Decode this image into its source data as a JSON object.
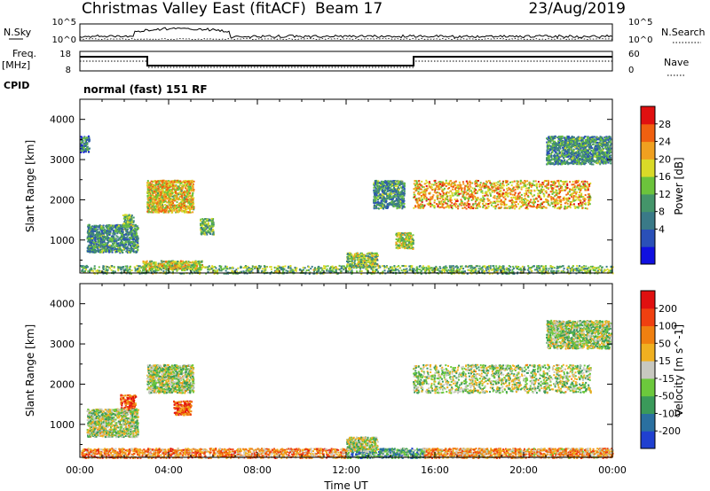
{
  "header": {
    "station": "Christmas Valley East (fitACF)",
    "beam": "Beam 17",
    "date": "23/Aug/2019"
  },
  "summary_panels": {
    "nsky_label": "N.Sky",
    "nsky_ticks": [
      "10^5",
      "10^0"
    ],
    "nsearch_label": "N.Search",
    "nsearch_ticks": [
      "10^5",
      "10^0"
    ],
    "freq_label": "Freq.",
    "freq_unit": "[MHz]",
    "freq_ticks": [
      "18",
      "8"
    ],
    "nave_label": "Nave",
    "nave_ticks": [
      "60",
      "0"
    ],
    "cpid_label": "CPID",
    "cpid_value": "normal (fast) 151 RF"
  },
  "chart_data": [
    {
      "type": "heatmap",
      "quantity": "power",
      "ylabel": "Slant Range [km]",
      "xlabel": "",
      "ylim": [
        180,
        4500
      ],
      "yticks": [
        1000,
        2000,
        3000,
        4000
      ],
      "xlim_hours": [
        0,
        24
      ],
      "colorbar": {
        "label": "Power [dB]",
        "ticks": [
          "28",
          "24",
          "20",
          "16",
          "12",
          "8",
          "4"
        ],
        "colors": [
          "#1010e0",
          "#2a50b8",
          "#3a7a88",
          "#44956a",
          "#6cc33c",
          "#dada28",
          "#f0a020",
          "#f06010",
          "#e01010"
        ]
      },
      "echo_regions": [
        {
          "t0": 0.0,
          "t1": 24.0,
          "r0": 180,
          "r1": 380,
          "level": 0.45
        },
        {
          "t0": 0.3,
          "t1": 2.6,
          "r0": 700,
          "r1": 1400,
          "level": 0.35
        },
        {
          "t0": 1.9,
          "t1": 2.4,
          "r0": 1350,
          "r1": 1650,
          "level": 0.45
        },
        {
          "t0": 3.0,
          "t1": 5.1,
          "r0": 1700,
          "r1": 2500,
          "level": 0.65
        },
        {
          "t0": 5.4,
          "t1": 6.0,
          "r0": 1150,
          "r1": 1550,
          "level": 0.45
        },
        {
          "t0": 2.8,
          "t1": 5.5,
          "r0": 280,
          "r1": 500,
          "level": 0.6
        },
        {
          "t0": 12.0,
          "t1": 13.4,
          "r0": 350,
          "r1": 700,
          "level": 0.5
        },
        {
          "t0": 13.2,
          "t1": 14.6,
          "r0": 1800,
          "r1": 2500,
          "level": 0.35
        },
        {
          "t0": 14.2,
          "t1": 15.0,
          "r0": 800,
          "r1": 1200,
          "level": 0.55
        },
        {
          "t0": 15.0,
          "t1": 23.0,
          "r0": 1800,
          "r1": 2500,
          "level": 0.7
        },
        {
          "t0": 21.0,
          "t1": 23.9,
          "r0": 2900,
          "r1": 3600,
          "level": 0.35
        },
        {
          "t0": 0.0,
          "t1": 0.4,
          "r0": 3200,
          "r1": 3600,
          "level": 0.3
        }
      ]
    },
    {
      "type": "heatmap",
      "quantity": "velocity",
      "ylabel": "Slant Range [km]",
      "xlabel": "Time UT",
      "ylim": [
        180,
        4500
      ],
      "yticks": [
        1000,
        2000,
        3000,
        4000
      ],
      "xlim_hours": [
        0,
        24
      ],
      "xticks": [
        "00:00",
        "04:00",
        "08:00",
        "12:00",
        "16:00",
        "20:00",
        "00:00"
      ],
      "colorbar": {
        "label": "Velocity [m s^-1]",
        "ticks": [
          "200",
          "100",
          "50",
          "15",
          "-15",
          "-50",
          "-100",
          "-200"
        ],
        "colors": [
          "#2040d0",
          "#2a70a0",
          "#3a9a5a",
          "#6cc83c",
          "#c8c8c0",
          "#f0b020",
          "#f08010",
          "#f04010",
          "#e01010"
        ]
      },
      "echo_regions": [
        {
          "t0": 0.0,
          "t1": 12.0,
          "r0": 180,
          "r1": 420,
          "level": 0.7
        },
        {
          "t0": 12.0,
          "t1": 15.5,
          "r0": 180,
          "r1": 420,
          "level": 0.3
        },
        {
          "t0": 15.5,
          "t1": 24.0,
          "r0": 180,
          "r1": 420,
          "level": 0.65
        },
        {
          "t0": 1.8,
          "t1": 2.5,
          "r0": 1300,
          "r1": 1750,
          "level": 0.8
        },
        {
          "t0": 4.2,
          "t1": 5.0,
          "r0": 1250,
          "r1": 1600,
          "level": 0.8
        },
        {
          "t0": 3.0,
          "t1": 5.1,
          "r0": 1800,
          "r1": 2500,
          "level": 0.45
        },
        {
          "t0": 0.3,
          "t1": 2.6,
          "r0": 700,
          "r1": 1400,
          "level": 0.45
        },
        {
          "t0": 12.0,
          "t1": 13.4,
          "r0": 350,
          "r1": 700,
          "level": 0.45
        },
        {
          "t0": 15.0,
          "t1": 23.0,
          "r0": 1800,
          "r1": 2500,
          "level": 0.45
        },
        {
          "t0": 21.0,
          "t1": 23.9,
          "r0": 2900,
          "r1": 3600,
          "level": 0.45
        }
      ]
    }
  ]
}
